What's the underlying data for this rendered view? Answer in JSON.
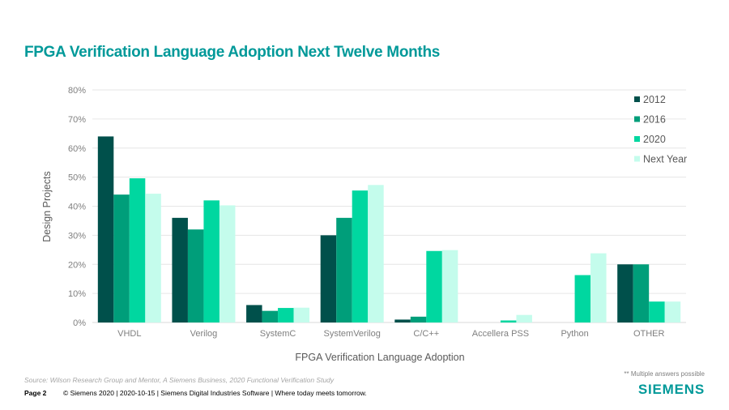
{
  "slide": {
    "title": "FPGA Verification Language Adoption Next Twelve Months",
    "source": "Source:  Wilson Research Group and Mentor,  A Siemens Business, 2020 Functional Verification Study",
    "page_label": "Page 2",
    "copyright": "© Siemens 2020 | 2020-10-15 | Siemens Digital Industries Software | Where today meets tomorrow.",
    "note": "** Multiple answers possible",
    "logo": "SIEMENS",
    "brand_color": "#009999"
  },
  "chart_data": {
    "type": "bar",
    "title": "",
    "xlabel": "FPGA Verification Language Adoption",
    "ylabel": "Design Projects",
    "ylim": [
      0,
      80
    ],
    "yticks": [
      0,
      10,
      20,
      30,
      40,
      50,
      60,
      70,
      80
    ],
    "ytick_labels": [
      "0%",
      "10%",
      "20%",
      "30%",
      "40%",
      "50%",
      "60%",
      "70%",
      "80%"
    ],
    "grid": true,
    "legend_position": "top-right",
    "categories": [
      "VHDL",
      "Verilog",
      "SystemC",
      "SystemVerilog",
      "C/C++",
      "Accellera PSS",
      "Python",
      "OTHER"
    ],
    "series": [
      {
        "name": "2012",
        "color": "#00504b",
        "values": [
          64,
          36,
          6,
          30,
          1,
          0,
          0,
          20
        ]
      },
      {
        "name": "2016",
        "color": "#009e7a",
        "values": [
          44,
          32,
          4,
          36,
          2,
          0,
          0,
          20
        ]
      },
      {
        "name": "2020",
        "color": "#00d7a0",
        "values": [
          49.6,
          42,
          5,
          45.4,
          24.6,
          0.7,
          16.3,
          7.2
        ]
      },
      {
        "name": "Next Year",
        "color": "#c4fcec",
        "values": [
          44.3,
          40.3,
          5.1,
          47.3,
          24.9,
          2.6,
          23.8,
          7.2
        ]
      }
    ]
  }
}
